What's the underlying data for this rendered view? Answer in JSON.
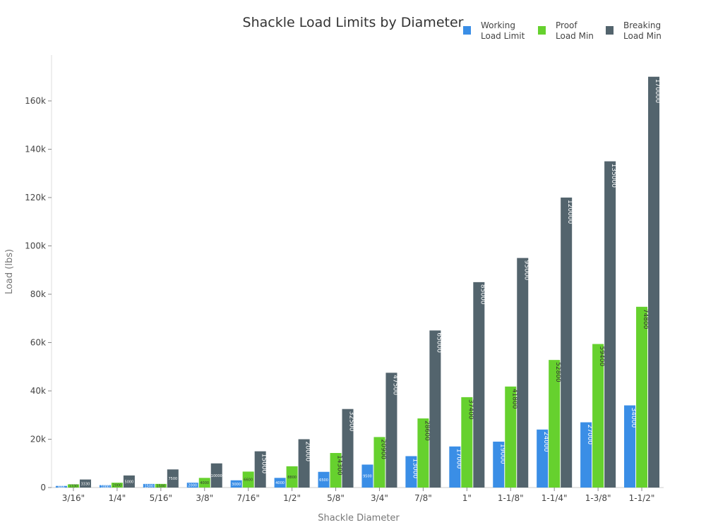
{
  "chart_data": {
    "type": "bar",
    "title": "Shackle Load Limits by Diameter",
    "xlabel": "Shackle Diameter",
    "ylabel": "Load (lbs)",
    "ylim": [
      0,
      180000
    ],
    "yticks": [
      0,
      20000,
      40000,
      60000,
      80000,
      100000,
      120000,
      140000,
      160000
    ],
    "ytick_labels": [
      "0",
      "20k",
      "40k",
      "60k",
      "80k",
      "100k",
      "120k",
      "140k",
      "160k"
    ],
    "grid": false,
    "legend_position": "top-right",
    "categories": [
      "3/16\"",
      "1/4\"",
      "5/16\"",
      "3/8\"",
      "7/16\"",
      "1/2\"",
      "5/8\"",
      "3/4\"",
      "7/8\"",
      "1\"",
      "1-1/8\"",
      "1-1/4\"",
      "1-3/8\"",
      "1-1/2\""
    ],
    "series": [
      {
        "name": "Working Load Limit",
        "legend_lines": [
          "Working",
          "Load Limit"
        ],
        "color": "#3a8ee6",
        "values": [
          666,
          1000,
          1500,
          2000,
          3000,
          4000,
          6500,
          9500,
          13000,
          17000,
          19000,
          24000,
          27000,
          34000
        ]
      },
      {
        "name": "Proof Load Min",
        "legend_lines": [
          "Proof",
          "Load Min"
        ],
        "color": "#66d12e",
        "values": [
          1330,
          2000,
          1500,
          4000,
          6600,
          8800,
          14300,
          20900,
          28600,
          37400,
          41800,
          52800,
          59400,
          74800
        ]
      },
      {
        "name": "Breaking Load Min",
        "legend_lines": [
          "Breaking",
          "Load Min"
        ],
        "color": "#53646d",
        "values": [
          3330,
          5000,
          7500,
          10000,
          15000,
          20000,
          32500,
          47500,
          65000,
          85000,
          95000,
          120000,
          135000,
          170000
        ]
      }
    ]
  }
}
